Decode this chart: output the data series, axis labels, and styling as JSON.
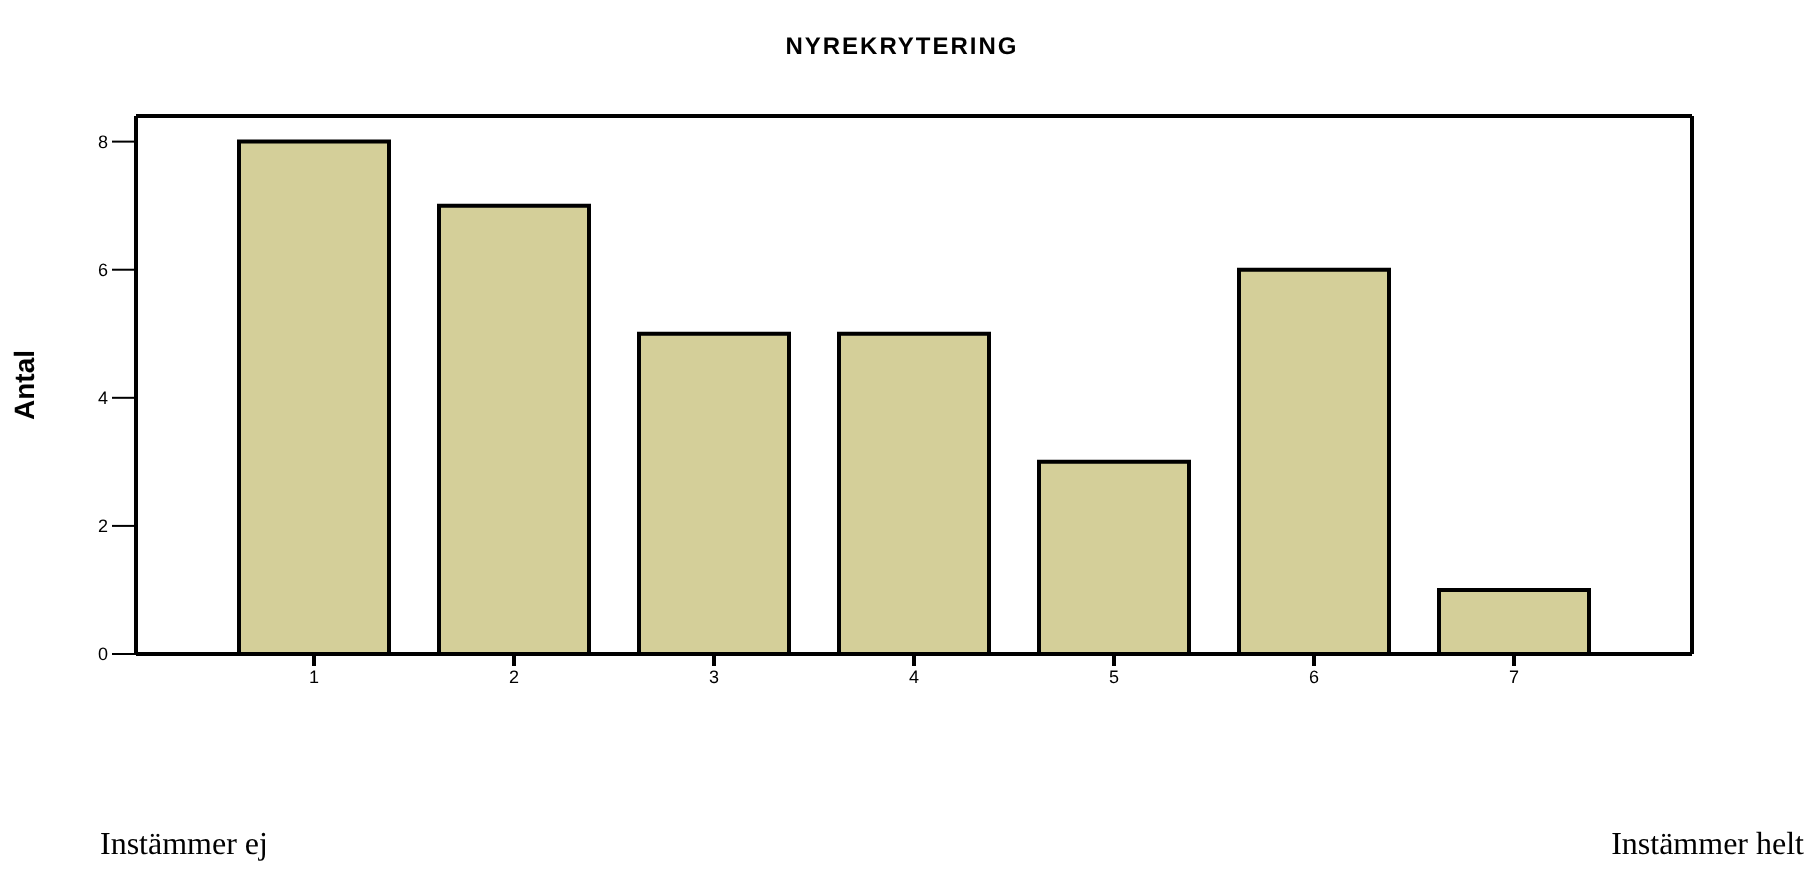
{
  "chart_data": {
    "type": "bar",
    "title": "NYREKRYTERING",
    "ylabel": "Antal",
    "categories": [
      "1",
      "2",
      "3",
      "4",
      "5",
      "6",
      "7"
    ],
    "values": [
      8,
      7,
      5,
      5,
      3,
      6,
      1
    ],
    "color": "#d4cf99",
    "ylim": [
      0,
      8.4
    ],
    "yticks": [
      0,
      2,
      4,
      6,
      8
    ],
    "annotations": [
      "Instämmer ej",
      "Instämmer helt"
    ]
  }
}
